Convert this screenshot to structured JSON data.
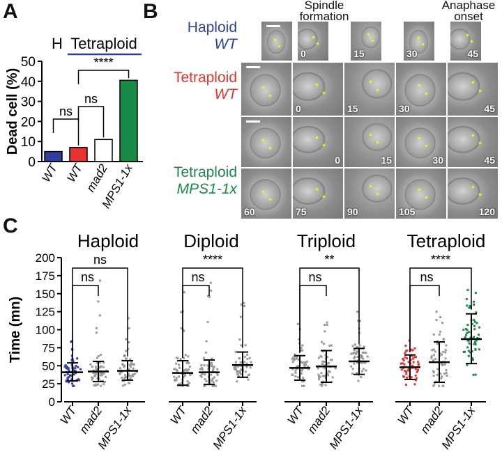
{
  "panels": {
    "a": "A",
    "b": "B",
    "c": "C"
  },
  "panel_a": {
    "group_header_h": "H",
    "group_header_tetraploid": "Tetraploid",
    "chart_data": {
      "type": "bar",
      "categories": [
        "WT",
        "WT",
        "mad2",
        "MPS1-1x"
      ],
      "values": [
        5,
        7,
        11,
        40.5
      ],
      "colors": [
        "#2e3f9e",
        "#e8322f",
        "#ffffff",
        "#1a8a48"
      ],
      "ylabel": "Dead cell  (%)",
      "ylim": [
        0,
        50
      ],
      "yticks": [
        "0",
        "10",
        "20",
        "30",
        "40",
        "50"
      ],
      "significance": [
        {
          "from": 0,
          "to": 1,
          "label": "ns"
        },
        {
          "from": 1,
          "to": 2,
          "label": "ns"
        },
        {
          "from": 1,
          "to": 3,
          "label": "****"
        }
      ]
    }
  },
  "panel_b": {
    "col_headers": {
      "spindle": "Spindle\nformation",
      "anaphase": "Anaphase\nonset"
    },
    "rows": [
      {
        "label1": "Haploid",
        "label2": "WT",
        "color": "#2e3f9e",
        "times": [
          "",
          "0",
          "15",
          "30",
          "45"
        ]
      },
      {
        "label1": "Tetraploid",
        "label2": "WT",
        "color": "#e8322f",
        "times": [
          "",
          "0",
          "15",
          "30",
          "45"
        ]
      },
      {
        "label1": "Tetraploid",
        "label2": "MPS1-1x",
        "color": "#1a8a48",
        "times": [
          "",
          "0",
          "15",
          "30",
          "45"
        ]
      },
      {
        "label1": "",
        "label2": "",
        "color": "#1a8a48",
        "times": [
          "60",
          "75",
          "90",
          "105",
          "120"
        ]
      }
    ]
  },
  "panel_c": {
    "ylabel": "Time (mn)",
    "yticks": [
      "0",
      "25",
      "50",
      "75",
      "100",
      "125",
      "150",
      "175",
      "200"
    ],
    "ylim": [
      0,
      200
    ],
    "chart_data": [
      {
        "type": "scatter",
        "title": "Haploid",
        "categories": [
          "WT",
          "mad2",
          "MPS1-1x"
        ],
        "colors": [
          "#2e3f9e",
          "#9a9a9a",
          "#9a9a9a"
        ],
        "mean": [
          41,
          42,
          43
        ],
        "sd_low": [
          29,
          28,
          30
        ],
        "sd_high": [
          54,
          56,
          57
        ],
        "max": [
          84,
          168,
          116
        ],
        "sig": [
          {
            "label": "ns",
            "to": 1
          },
          {
            "label": "ns",
            "to": 2
          }
        ]
      },
      {
        "type": "scatter",
        "title": "Diploid",
        "categories": [
          "WT",
          "mad2",
          "MPS1-1x"
        ],
        "colors": [
          "#9a9a9a",
          "#9a9a9a",
          "#9a9a9a"
        ],
        "mean": [
          40,
          41,
          51
        ],
        "sd_low": [
          23,
          24,
          34
        ],
        "sd_high": [
          57,
          58,
          69
        ],
        "max": [
          152,
          165,
          137
        ],
        "sig": [
          {
            "label": "ns",
            "to": 1
          },
          {
            "label": "****",
            "to": 2
          }
        ]
      },
      {
        "type": "scatter",
        "title": "Triploid",
        "categories": [
          "WT",
          "mad2",
          "MPS1-1x"
        ],
        "colors": [
          "#9a9a9a",
          "#9a9a9a",
          "#9a9a9a"
        ],
        "mean": [
          47,
          49,
          56
        ],
        "sd_low": [
          30,
          27,
          38
        ],
        "sd_high": [
          64,
          71,
          74
        ],
        "max": [
          108,
          110,
          125
        ],
        "sig": [
          {
            "label": "ns",
            "to": 1
          },
          {
            "label": "**",
            "to": 2
          }
        ]
      },
      {
        "type": "scatter",
        "title": "Tetraploid",
        "categories": [
          "WT",
          "mad2",
          "MPS1-1x"
        ],
        "colors": [
          "#e8322f",
          "#9a9a9a",
          "#1a8a48"
        ],
        "mean": [
          48,
          55,
          87
        ],
        "sd_low": [
          31,
          27,
          53
        ],
        "sd_high": [
          65,
          83,
          122
        ],
        "max": [
          85,
          125,
          155
        ],
        "sig": [
          {
            "label": "ns",
            "to": 1
          },
          {
            "label": "****",
            "to": 2
          }
        ]
      }
    ]
  }
}
